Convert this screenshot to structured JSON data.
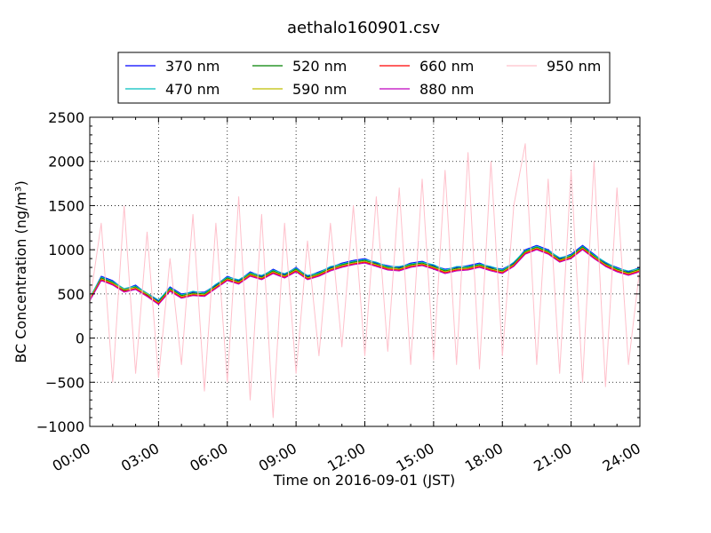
{
  "chart_data": {
    "type": "line",
    "title": "aethalo160901.csv",
    "xlabel": "Time on 2016-09-01 (JST)",
    "ylabel": "BC Concentration (ng/m³)",
    "ylim": [
      -1000,
      2500
    ],
    "xlim_hours": [
      0,
      24
    ],
    "x_tick_labels": [
      "00:00",
      "03:00",
      "06:00",
      "09:00",
      "12:00",
      "15:00",
      "18:00",
      "21:00",
      "24:00"
    ],
    "y_ticks": [
      -1000,
      -500,
      0,
      500,
      1000,
      1500,
      2000,
      2500
    ],
    "y_tick_labels": [
      "−1000",
      "−500",
      "0",
      "500",
      "1000",
      "1500",
      "2000",
      "2500"
    ],
    "grid": true,
    "legend_position": "top",
    "x_hours": [
      0,
      0.5,
      1,
      1.5,
      2,
      2.5,
      3,
      3.5,
      4,
      4.5,
      5,
      5.5,
      6,
      6.5,
      7,
      7.5,
      8,
      8.5,
      9,
      9.5,
      10,
      10.5,
      11,
      11.5,
      12,
      12.5,
      13,
      13.5,
      14,
      14.5,
      15,
      15.5,
      16,
      16.5,
      17,
      17.5,
      18,
      18.5,
      19,
      19.5,
      20,
      20.5,
      21,
      21.5,
      22,
      22.5,
      23,
      23.5,
      24
    ],
    "series": [
      {
        "name": "370 nm",
        "color": "#0000ff",
        "values": [
          450,
          700,
          650,
          550,
          600,
          500,
          420,
          580,
          500,
          520,
          520,
          600,
          700,
          650,
          750,
          700,
          780,
          720,
          800,
          700,
          750,
          800,
          850,
          880,
          900,
          850,
          820,
          800,
          850,
          870,
          820,
          780,
          800,
          820,
          850,
          800,
          780,
          850,
          1000,
          1050,
          1000,
          900,
          950,
          1050,
          950,
          850,
          800,
          750,
          800
        ]
      },
      {
        "name": "470 nm",
        "color": "#00bfbf",
        "values": [
          460,
          690,
          640,
          560,
          590,
          510,
          430,
          570,
          490,
          530,
          510,
          610,
          690,
          660,
          740,
          710,
          770,
          730,
          790,
          710,
          740,
          810,
          840,
          870,
          890,
          860,
          810,
          810,
          840,
          860,
          830,
          770,
          810,
          810,
          840,
          810,
          770,
          860,
          990,
          1040,
          990,
          910,
          940,
          1040,
          940,
          860,
          790,
          760,
          790
        ]
      },
      {
        "name": "520 nm",
        "color": "#008000",
        "values": [
          440,
          680,
          630,
          540,
          580,
          490,
          410,
          560,
          480,
          510,
          500,
          590,
          680,
          640,
          730,
          690,
          760,
          710,
          780,
          690,
          730,
          790,
          830,
          860,
          880,
          840,
          800,
          790,
          830,
          850,
          810,
          760,
          790,
          800,
          830,
          790,
          760,
          840,
          980,
          1030,
          980,
          890,
          930,
          1030,
          930,
          840,
          780,
          740,
          780
        ]
      },
      {
        "name": "590 nm",
        "color": "#bfbf00",
        "values": [
          450,
          670,
          620,
          550,
          570,
          500,
          400,
          550,
          470,
          500,
          490,
          580,
          670,
          630,
          720,
          680,
          750,
          700,
          770,
          680,
          720,
          780,
          820,
          850,
          870,
          830,
          790,
          780,
          820,
          840,
          800,
          750,
          780,
          790,
          820,
          780,
          750,
          830,
          970,
          1020,
          970,
          880,
          920,
          1020,
          920,
          830,
          770,
          730,
          770
        ]
      },
      {
        "name": "660 nm",
        "color": "#ff0000",
        "values": [
          430,
          660,
          610,
          530,
          560,
          480,
          390,
          540,
          460,
          490,
          480,
          570,
          660,
          620,
          710,
          670,
          740,
          690,
          760,
          670,
          710,
          770,
          810,
          840,
          860,
          820,
          780,
          770,
          810,
          830,
          790,
          740,
          770,
          780,
          810,
          770,
          740,
          820,
          960,
          1010,
          960,
          870,
          910,
          1010,
          910,
          820,
          760,
          720,
          760
        ]
      },
      {
        "name": "880 nm",
        "color": "#bf00bf",
        "values": [
          420,
          650,
          600,
          520,
          550,
          470,
          380,
          530,
          450,
          480,
          470,
          560,
          650,
          610,
          700,
          660,
          730,
          680,
          750,
          660,
          700,
          760,
          800,
          830,
          850,
          810,
          770,
          760,
          800,
          820,
          780,
          730,
          760,
          770,
          800,
          760,
          730,
          810,
          950,
          1000,
          950,
          860,
          900,
          1000,
          900,
          810,
          750,
          710,
          750
        ]
      },
      {
        "name": "950 nm",
        "color": "#ffc0cb",
        "values": [
          400,
          1300,
          -500,
          1500,
          -400,
          1200,
          -450,
          900,
          -300,
          1400,
          -600,
          1300,
          -500,
          1600,
          -700,
          1400,
          -900,
          1300,
          -400,
          1100,
          -200,
          1300,
          -100,
          1500,
          -200,
          1600,
          -150,
          1700,
          -300,
          1800,
          -250,
          1900,
          -300,
          2100,
          -350,
          2000,
          -200,
          1500,
          2200,
          -300,
          1800,
          -400,
          1900,
          -500,
          2000,
          -550,
          1700,
          -300,
          800
        ]
      }
    ]
  }
}
